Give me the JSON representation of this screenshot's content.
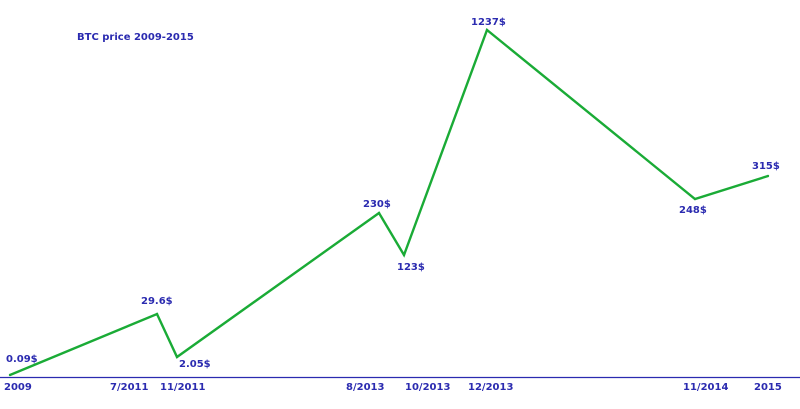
{
  "chart_data": {
    "type": "line",
    "title": "BTC price 2009-2015",
    "xlabel": "",
    "ylabel": "",
    "grid": false,
    "legend": "none",
    "line_color": "#1aab36",
    "text_color": "#2b2bb0",
    "axis_color": "#2b2bb0",
    "series": [
      {
        "points": [
          {
            "x": "2009",
            "y": 0.09,
            "label": "0.09$"
          },
          {
            "x": "7/2011",
            "y": 29.6,
            "label": "29.6$"
          },
          {
            "x": "11/2011",
            "y": 2.05,
            "label": "2.05$"
          },
          {
            "x": "8/2013",
            "y": 230,
            "label": "230$"
          },
          {
            "x": "10/2013",
            "y": 123,
            "label": "123$"
          },
          {
            "x": "12/2013",
            "y": 1237,
            "label": "1237$"
          },
          {
            "x": "11/2014",
            "y": 248,
            "label": "248$"
          },
          {
            "x": "2015",
            "y": 315,
            "label": "315$"
          }
        ]
      }
    ]
  }
}
